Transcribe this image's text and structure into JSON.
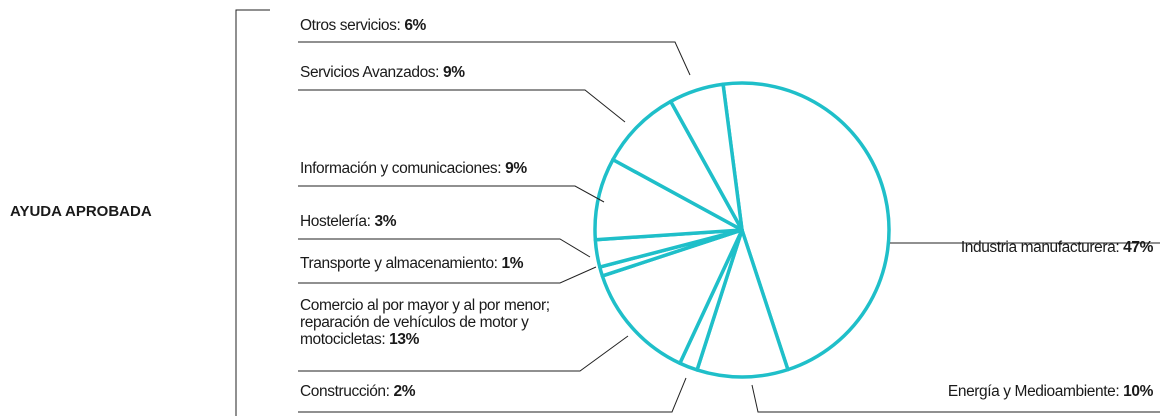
{
  "chart_data": {
    "type": "pie",
    "title": "AYUDA APROBADA",
    "categories": [
      "Industria manufacturera:",
      "Energía y Medioambiente:",
      "Construcción:",
      "Comercio al por mayor y al por menor; reparación de vehículos de motor y motocicletas:",
      "Transporte y almacenamiento:",
      "Hostelería:",
      "Información y comunicaciones:",
      "Servicios Avanzados:",
      "Otros servicios:"
    ],
    "values": [
      47,
      10,
      2,
      13,
      1,
      3,
      9,
      9,
      6
    ],
    "value_labels": [
      "47%",
      "10%",
      "2%",
      "13%",
      "1%",
      "3%",
      "9%",
      "9%",
      "6%"
    ],
    "color": "#1fbfc9"
  }
}
